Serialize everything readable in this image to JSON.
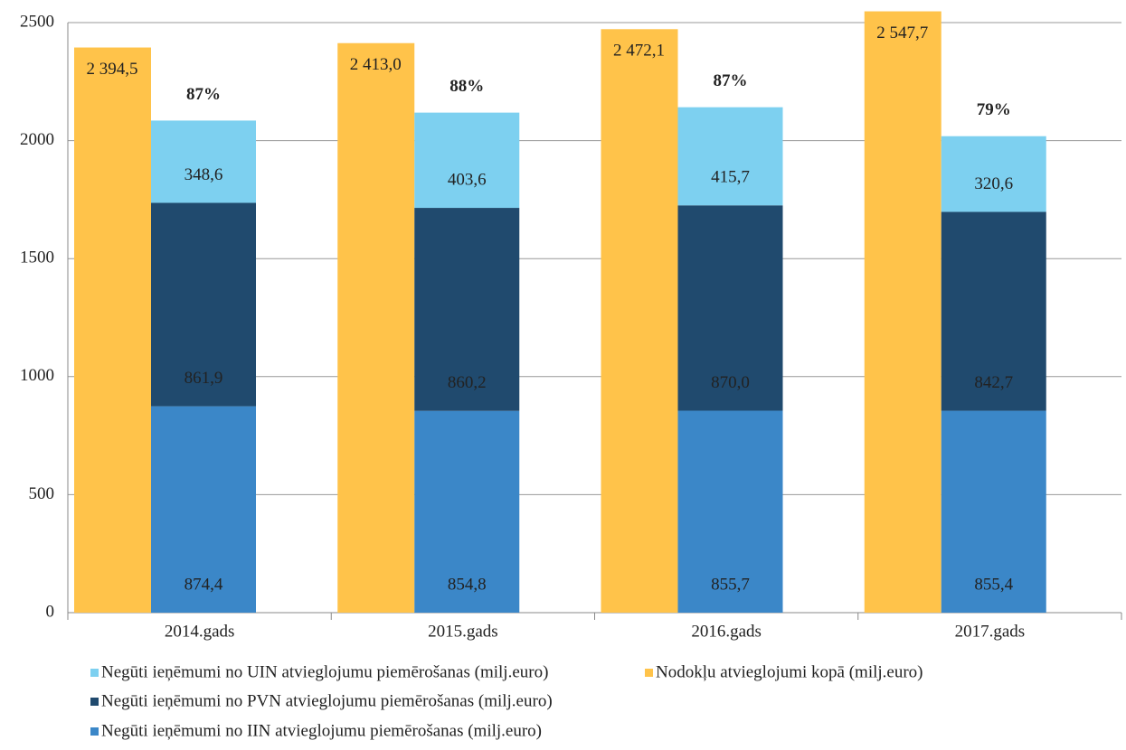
{
  "chart_data": {
    "type": "bar",
    "categories": [
      "2014.gads",
      "2015.gads",
      "2016.gads",
      "2017.gads"
    ],
    "series": [
      {
        "name": "Negūti ieņēmumi no UIN atvieglojumu piemērošanas (milj.euro)",
        "color": "#7dd0f0",
        "values": [
          348.6,
          403.6,
          415.7,
          320.6
        ],
        "value_labels": [
          "348,6",
          "403,6",
          "415,7",
          "320,6"
        ]
      },
      {
        "name": "Nodokļu atvieglojumi kopā (milj.euro)",
        "color": "#ffc34a",
        "values": [
          2394.5,
          2413.0,
          2472.1,
          2547.7
        ],
        "value_labels": [
          "2 394,5",
          "2 413,0",
          "2 472,1",
          "2 547,7"
        ]
      },
      {
        "name": "Negūti ieņēmumi no PVN atvieglojumu piemērošanas (milj.euro)",
        "color": "#204a6e",
        "values": [
          861.9,
          860.2,
          870.0,
          842.7
        ],
        "value_labels": [
          "861,9",
          "860,2",
          "870,0",
          "842,7"
        ]
      },
      {
        "name": "Negūti ieņēmumi no IIN atvieglojumu piemērošanas (milj.euro)",
        "color": "#3b87c8",
        "values": [
          874.4,
          854.8,
          855.7,
          855.4
        ],
        "value_labels": [
          "874,4",
          "854,8",
          "855,7",
          "855,4"
        ]
      }
    ],
    "annotations": [
      "87%",
      "88%",
      "87%",
      "79%"
    ],
    "ylim": [
      0,
      2500
    ],
    "yticks": [
      0,
      500,
      1000,
      1500,
      2000,
      2500
    ],
    "grid": true
  }
}
